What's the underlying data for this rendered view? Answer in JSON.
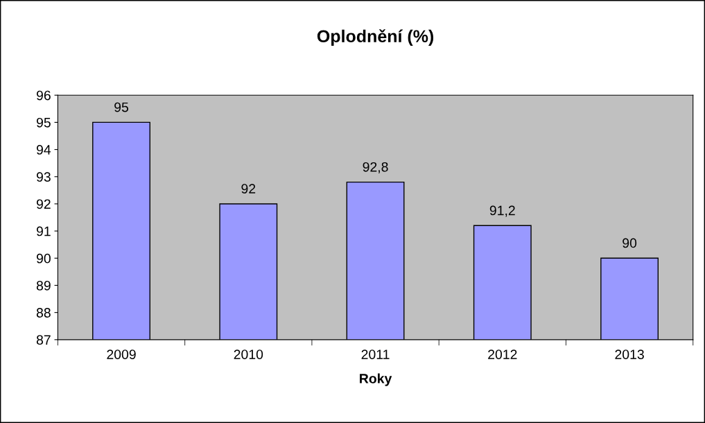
{
  "chart_data": {
    "type": "bar",
    "title": "Oplodnění (%)",
    "xlabel": "Roky",
    "categories": [
      "2009",
      "2010",
      "2011",
      "2012",
      "2013"
    ],
    "values": [
      95,
      92,
      92.8,
      91.2,
      90
    ],
    "value_labels": [
      "95",
      "92",
      "92,8",
      "91,2",
      "90"
    ],
    "color": "#9999ff",
    "ylim": [
      87,
      96
    ],
    "yticks": [
      87,
      88,
      89,
      90,
      91,
      92,
      93,
      94,
      95,
      96
    ],
    "grid": false,
    "legend": false
  }
}
